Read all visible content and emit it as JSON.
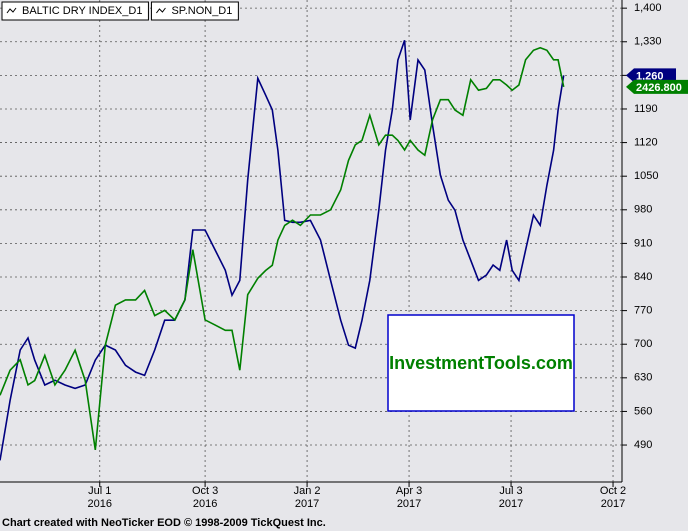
{
  "chart_data": {
    "type": "line",
    "x": [
      "2016-04-03",
      "2016-04-12",
      "2016-04-21",
      "2016-04-28",
      "2016-05-04",
      "2016-05-13",
      "2016-05-22",
      "2016-05-31",
      "2016-06-09",
      "2016-06-18",
      "2016-06-27",
      "2016-07-06",
      "2016-07-15",
      "2016-07-24",
      "2016-08-02",
      "2016-08-10",
      "2016-08-19",
      "2016-08-28",
      "2016-09-06",
      "2016-09-15",
      "2016-09-22",
      "2016-10-03",
      "2016-10-12",
      "2016-10-21",
      "2016-10-27",
      "2016-11-03",
      "2016-11-10",
      "2016-11-19",
      "2016-11-26",
      "2016-12-02",
      "2016-12-07",
      "2016-12-13",
      "2016-12-20",
      "2016-12-27",
      "2017-01-05",
      "2017-01-14",
      "2017-01-23",
      "2017-02-01",
      "2017-02-08",
      "2017-02-14",
      "2017-02-20",
      "2017-02-27",
      "2017-03-07",
      "2017-03-13",
      "2017-03-19",
      "2017-03-24",
      "2017-03-30",
      "2017-04-04",
      "2017-04-11",
      "2017-04-17",
      "2017-04-24",
      "2017-05-01",
      "2017-05-08",
      "2017-05-14",
      "2017-05-21",
      "2017-05-28",
      "2017-06-04",
      "2017-06-11",
      "2017-06-17",
      "2017-06-23",
      "2017-06-29",
      "2017-07-04",
      "2017-07-10",
      "2017-07-16",
      "2017-07-23",
      "2017-07-29",
      "2017-08-04",
      "2017-08-10",
      "2017-08-14",
      "2017-08-19"
    ],
    "series": [
      {
        "name": "BALTIC DRY INDEX_D1",
        "color": "#000080",
        "values": [
          458,
          583,
          688,
          713,
          667,
          615,
          625,
          615,
          608,
          615,
          667,
          698,
          688,
          656,
          642,
          635,
          688,
          750,
          750,
          792,
          938,
          938,
          896,
          854,
          802,
          833,
          1042,
          1254,
          1219,
          1188,
          1104,
          958,
          954,
          954,
          958,
          917,
          833,
          750,
          698,
          692,
          750,
          833,
          979,
          1104,
          1188,
          1292,
          1333,
          1167,
          1292,
          1271,
          1156,
          1052,
          1000,
          979,
          917,
          875,
          833,
          844,
          865,
          854,
          917,
          854,
          833,
          896,
          969,
          948,
          1031,
          1104,
          1188,
          1260
        ],
        "value_labels": [
          null,
          null,
          null,
          null,
          null,
          null,
          null,
          null,
          null,
          null,
          null,
          null,
          null,
          null,
          null,
          null,
          null,
          null,
          null,
          null,
          null,
          null,
          null,
          null,
          null,
          null,
          null,
          null,
          null,
          null,
          null,
          null,
          null,
          null,
          null,
          null,
          null,
          null,
          null,
          null,
          null,
          null,
          null,
          null,
          null,
          null,
          null,
          null,
          null,
          null,
          null,
          null,
          null,
          null,
          null,
          null,
          null,
          null,
          null,
          null,
          null,
          null,
          null,
          null,
          null,
          null,
          null,
          null,
          null,
          "1,260"
        ]
      },
      {
        "name": "SP.NON_D1",
        "color": "#008000",
        "axis": "y2",
        "values": [
          2071,
          2100,
          2112,
          2083,
          2088,
          2117,
          2083,
          2100,
          2123,
          2088,
          2008,
          2129,
          2175,
          2181,
          2181,
          2192,
          2163,
          2169,
          2158,
          2181,
          2239,
          2158,
          2152,
          2146,
          2146,
          2100,
          2187,
          2206,
          2215,
          2221,
          2250,
          2267,
          2273,
          2267,
          2279,
          2279,
          2285,
          2308,
          2342,
          2360,
          2365,
          2394,
          2360,
          2371,
          2371,
          2365,
          2354,
          2365,
          2354,
          2348,
          2389,
          2412,
          2412,
          2400,
          2394,
          2435,
          2423,
          2425,
          2435,
          2435,
          2429,
          2423,
          2429,
          2458,
          2469,
          2472,
          2469,
          2458,
          2458,
          2426.8
        ],
        "value_labels": [
          null,
          null,
          null,
          null,
          null,
          null,
          null,
          null,
          null,
          null,
          null,
          null,
          null,
          null,
          null,
          null,
          null,
          null,
          null,
          null,
          null,
          null,
          null,
          null,
          null,
          null,
          null,
          null,
          null,
          null,
          null,
          null,
          null,
          null,
          null,
          null,
          null,
          null,
          null,
          null,
          null,
          null,
          null,
          null,
          null,
          null,
          null,
          null,
          null,
          null,
          null,
          null,
          null,
          null,
          null,
          null,
          null,
          null,
          null,
          null,
          null,
          null,
          null,
          null,
          null,
          null,
          null,
          null,
          null,
          "2426.800"
        ]
      }
    ],
    "xlim": [
      "2016-04-03",
      "2017-10-10"
    ],
    "xticks": [
      {
        "value": "2016-07-01",
        "label": [
          "Jul 1",
          "2016"
        ]
      },
      {
        "value": "2016-10-03",
        "label": [
          "Oct 3",
          "2016"
        ]
      },
      {
        "value": "2017-01-02",
        "label": [
          "Jan 2",
          "2017"
        ]
      },
      {
        "value": "2017-04-03",
        "label": [
          "Apr 3",
          "2017"
        ]
      },
      {
        "value": "2017-07-03",
        "label": [
          "Jul 3",
          "2017"
        ]
      },
      {
        "value": "2017-10-02",
        "label": [
          "Oct 2",
          "2017"
        ]
      }
    ],
    "ylim": [
      413,
      1417
    ],
    "yticks": [
      490,
      560,
      630,
      700,
      770,
      840,
      910,
      980,
      1050,
      1120,
      1190,
      {
        "value": 1260,
        "label": "1,260"
      },
      {
        "value": 1330,
        "label": "1,330"
      },
      {
        "value": 1400,
        "label": "1,400"
      }
    ],
    "y2lim": [
      1971,
      2527
    ],
    "grid": true,
    "annotation": "InvestmentTools.com",
    "footer": "Chart created with NeoTicker EOD © 1998-2009 TickQuest Inc."
  }
}
